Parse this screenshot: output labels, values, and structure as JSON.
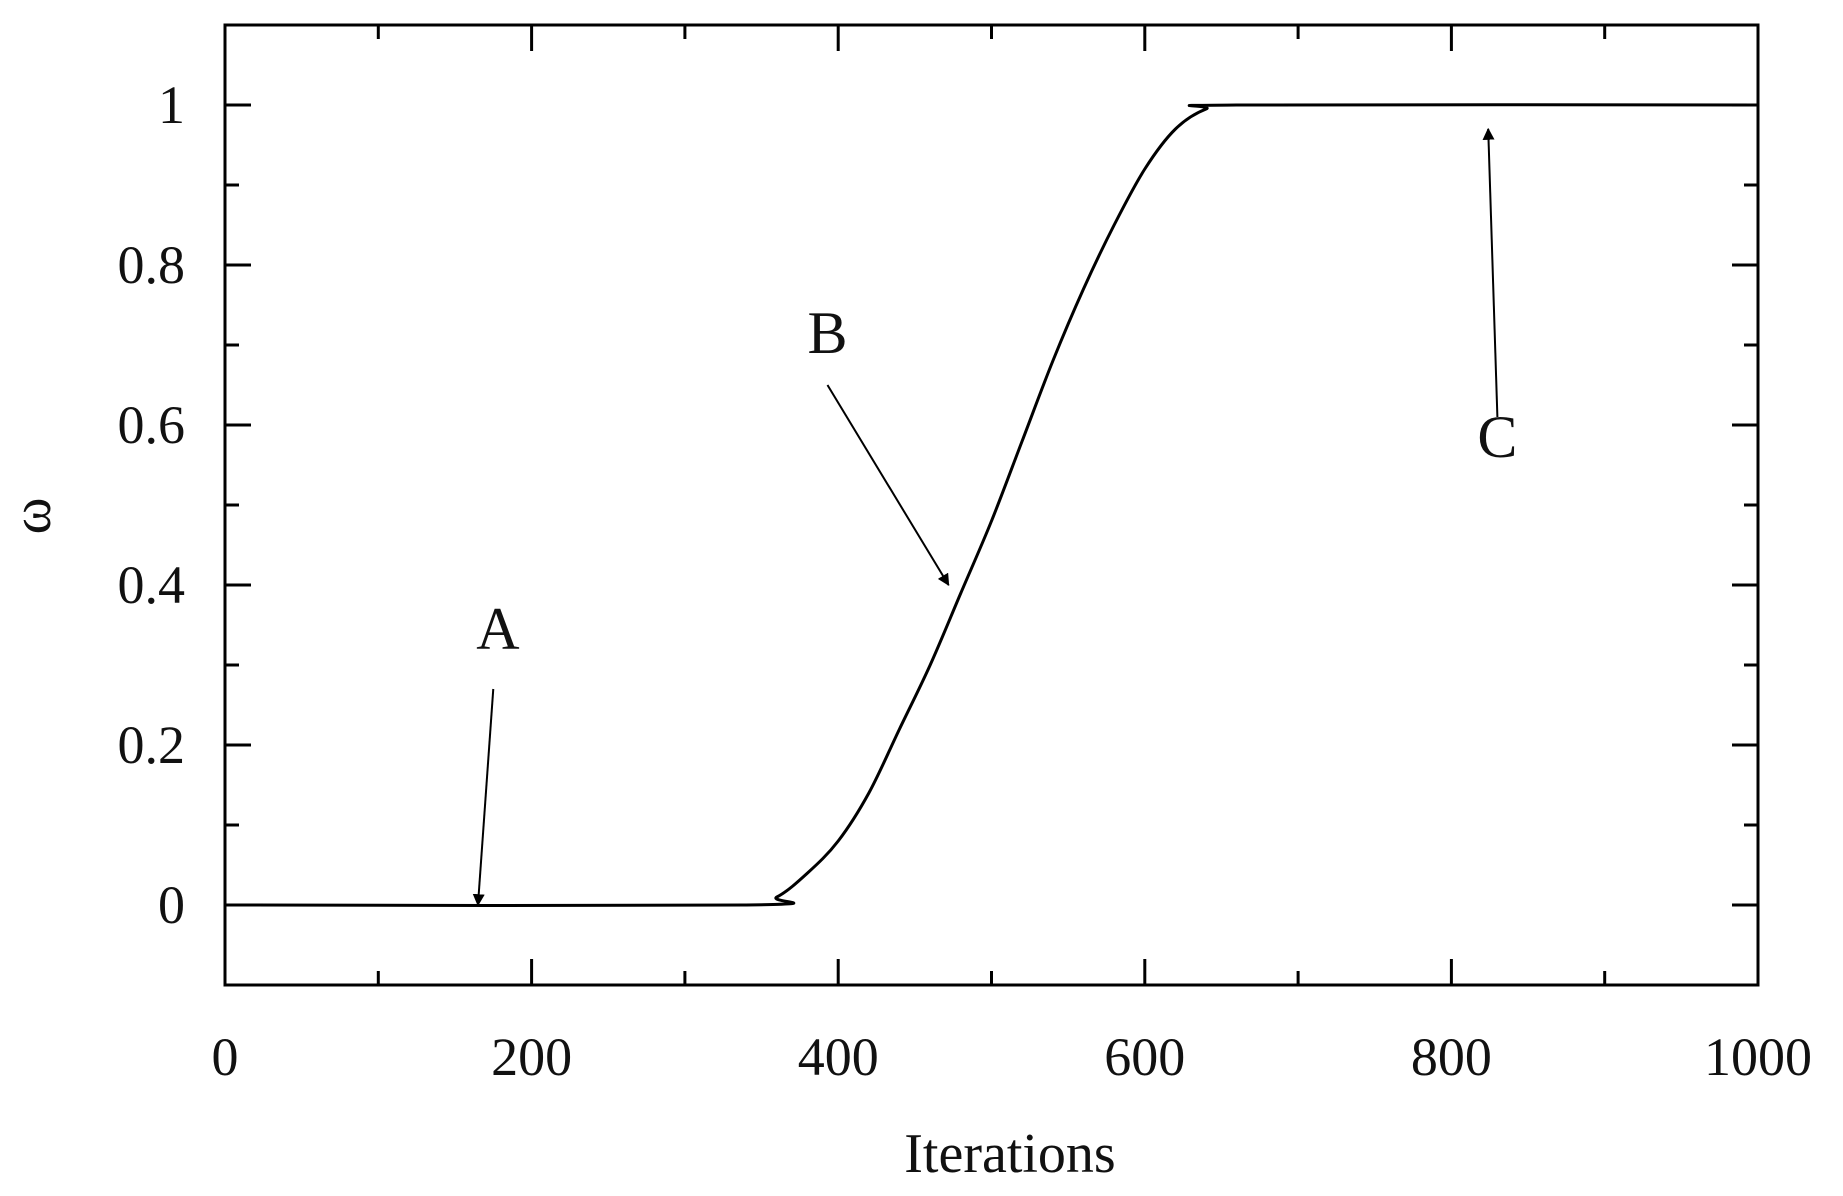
{
  "chart_data": {
    "type": "line",
    "xlabel": "Iterations",
    "ylabel": "ω",
    "xlim": [
      0,
      1000
    ],
    "ylim": [
      -0.1,
      1.1
    ],
    "x_ticks": [
      0,
      200,
      400,
      600,
      800,
      1000
    ],
    "x_tick_labels": [
      "0",
      "200",
      "400",
      "600",
      "800",
      "1000"
    ],
    "x_minor_ticks": [
      100,
      300,
      500,
      700,
      900
    ],
    "y_ticks": [
      0,
      0.2,
      0.4,
      0.6,
      0.8,
      1
    ],
    "y_tick_labels": [
      "0",
      "0.2",
      "0.4",
      "0.6",
      "0.8",
      "1"
    ],
    "y_minor_ticks": [
      -0.1,
      0.1,
      0.3,
      0.5,
      0.7,
      0.9,
      1.1
    ],
    "grid": false,
    "series": [
      {
        "x": [
          0,
          340,
          360,
          380,
          400,
          420,
          440,
          460,
          480,
          500,
          520,
          540,
          560,
          580,
          600,
          620,
          640,
          660,
          1000
        ],
        "y": [
          0,
          0,
          0.01,
          0.04,
          0.08,
          0.14,
          0.22,
          0.3,
          0.39,
          0.48,
          0.58,
          0.68,
          0.77,
          0.85,
          0.92,
          0.97,
          0.995,
          1,
          1
        ]
      }
    ],
    "annotations": [
      {
        "label": "A",
        "text_x": 178,
        "text_y": 0.32,
        "arrow_from": [
          175,
          0.27
        ],
        "arrow_to": [
          165,
          0.0
        ]
      },
      {
        "label": "B",
        "text_x": 393,
        "text_y": 0.69,
        "arrow_from": [
          393,
          0.65
        ],
        "arrow_to": [
          472,
          0.4
        ]
      },
      {
        "label": "C",
        "text_x": 830,
        "text_y": 0.56,
        "arrow_from": [
          830,
          0.61
        ],
        "arrow_to": [
          824,
          0.97
        ]
      }
    ]
  }
}
